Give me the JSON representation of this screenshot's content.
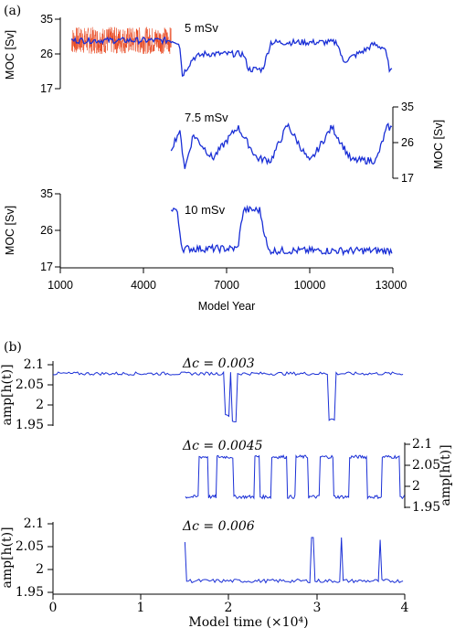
{
  "figure": {
    "label_a": "(a)",
    "label_b": "(b)"
  },
  "panel_a": {
    "xlabel": "Model Year",
    "ylabel": "MOC [Sv]",
    "x_ticks": [
      "1000",
      "4000",
      "7000",
      "10000",
      "13000"
    ],
    "y_ticks": [
      "17",
      "26",
      "35"
    ]
  },
  "panel_b": {
    "xlabel": "Model time (×10⁴)",
    "ylabel": "amp[h(t)]",
    "x_ticks": [
      "0",
      "1",
      "2",
      "3",
      "4"
    ],
    "y_ticks_top": [
      "1.95",
      "2",
      "2.05",
      "2.1"
    ],
    "y_ticks_mid": [
      "1.95",
      "2",
      "2.05",
      "2.1"
    ],
    "y_ticks_bot": [
      "1.95",
      "2",
      "2.05",
      "2.1"
    ]
  },
  "colors": {
    "model": "#1a2fd6",
    "obs": "#e8431a"
  },
  "chart_data": [
    {
      "type": "line",
      "panel": "a",
      "annotation": "5 mSv",
      "xlim": [
        1000,
        13000
      ],
      "ylim": [
        17,
        35
      ],
      "series": [
        {
          "color": "#e8431a",
          "x_range": [
            1400,
            5000
          ],
          "mean": 29.5,
          "amplitude": 3.5
        },
        {
          "color": "#1a2fd6",
          "x_range": [
            1400,
            13000
          ],
          "levels": [
            [
              1400,
              29.5
            ],
            [
              5000,
              29.5
            ],
            [
              5300,
              29.0
            ],
            [
              5400,
              20.5
            ],
            [
              5800,
              25.0
            ],
            [
              6200,
              26.0
            ],
            [
              7600,
              26.0
            ],
            [
              7800,
              22.0
            ],
            [
              8300,
              22.0
            ],
            [
              8600,
              29.0
            ],
            [
              11000,
              29.0
            ],
            [
              11200,
              24.0
            ],
            [
              12000,
              27.0
            ],
            [
              12300,
              28.5
            ],
            [
              12700,
              27.5
            ],
            [
              12900,
              21.5
            ]
          ]
        }
      ]
    },
    {
      "type": "line",
      "panel": "a",
      "annotation": "7.5 mSv",
      "xlim": [
        1000,
        13000
      ],
      "ylim": [
        17,
        35
      ],
      "series": [
        {
          "color": "#1a2fd6",
          "x_range": [
            5000,
            13000
          ],
          "levels": [
            [
              5000,
              24.5
            ],
            [
              5300,
              29.0
            ],
            [
              5500,
              19.5
            ],
            [
              5800,
              28.0
            ],
            [
              6500,
              22.0
            ],
            [
              7400,
              30.0
            ],
            [
              8100,
              22.0
            ],
            [
              8600,
              21.5
            ],
            [
              9200,
              30.5
            ],
            [
              10000,
              21.0
            ],
            [
              10800,
              30.0
            ],
            [
              11500,
              21.5
            ],
            [
              12400,
              21.5
            ],
            [
              12800,
              30.0
            ],
            [
              13000,
              29.5
            ]
          ]
        }
      ]
    },
    {
      "type": "line",
      "panel": "a",
      "annotation": "10 mSv",
      "xlim": [
        1000,
        13000
      ],
      "ylim": [
        17,
        35
      ],
      "series": [
        {
          "color": "#1a2fd6",
          "x_range": [
            5000,
            13000
          ],
          "levels": [
            [
              5000,
              31.5
            ],
            [
              5200,
              31.0
            ],
            [
              5400,
              21.5
            ],
            [
              7400,
              21.5
            ],
            [
              7600,
              31.0
            ],
            [
              8200,
              31.0
            ],
            [
              8500,
              21.0
            ],
            [
              13000,
              21.0
            ]
          ]
        }
      ]
    },
    {
      "type": "line",
      "panel": "b",
      "annotation": "Δc = 0.003",
      "xlim": [
        0,
        4
      ],
      "ylim": [
        1.95,
        2.1
      ],
      "series": [
        {
          "color": "#1a2fd6",
          "baseline": 2.078,
          "dips": [
            {
              "x": 1.98,
              "y": 1.975
            },
            {
              "x": 2.06,
              "y": 1.96
            },
            {
              "x": 3.17,
              "y": 1.965
            }
          ]
        }
      ]
    },
    {
      "type": "line",
      "panel": "b",
      "annotation": "Δc = 0.0045",
      "xlim": [
        1.5,
        4
      ],
      "ylim": [
        1.95,
        2.1
      ],
      "series": [
        {
          "color": "#1a2fd6",
          "high": 2.07,
          "low": 1.975,
          "switching": true
        }
      ]
    },
    {
      "type": "line",
      "panel": "b",
      "annotation": "Δc = 0.006",
      "xlim": [
        0,
        4
      ],
      "ylim": [
        1.95,
        2.1
      ],
      "series": [
        {
          "color": "#1a2fd6",
          "baseline": 1.975,
          "start": 1.5,
          "peaks": [
            {
              "x": 1.5,
              "y": 2.06
            },
            {
              "x": 2.95,
              "y": 2.07
            },
            {
              "x": 3.28,
              "y": 2.07
            },
            {
              "x": 3.72,
              "y": 2.065
            }
          ]
        }
      ]
    }
  ]
}
